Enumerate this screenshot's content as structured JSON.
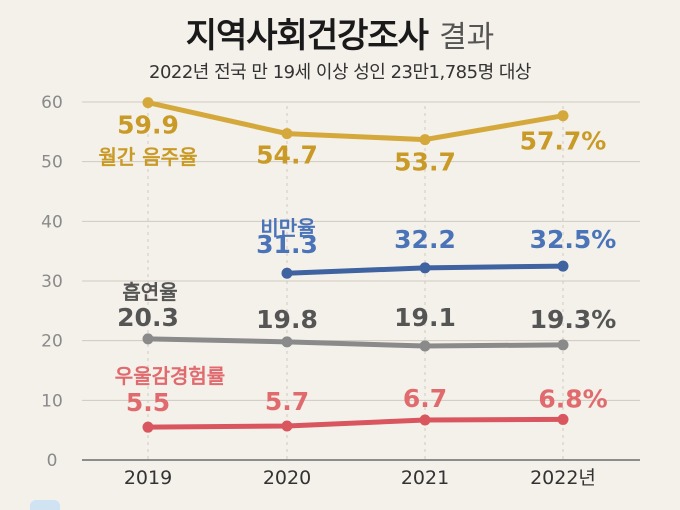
{
  "title": "지역사회건강조사",
  "title_suffix": "결과",
  "subtitle": "2022년 전국 만 19세 이상 성인 23만1,785명 대상",
  "chart_data": {
    "type": "line",
    "x": [
      "2019",
      "2020",
      "2021",
      "2022"
    ],
    "x_tick_labels": [
      "2019",
      "2020",
      "2021",
      "2022년"
    ],
    "ylim": [
      0,
      60
    ],
    "y_ticks": [
      0,
      10,
      20,
      30,
      40,
      50,
      60
    ],
    "grid": true,
    "series": [
      {
        "name": "월간 음주율",
        "color": "#d4a83a",
        "text_color": "#c99a26",
        "values": [
          59.9,
          54.7,
          53.7,
          57.7
        ],
        "labels": [
          "59.9",
          "54.7",
          "53.7",
          "57.7%"
        ]
      },
      {
        "name": "비만율",
        "color": "#3f62a0",
        "text_color": "#4a73b8",
        "values": [
          null,
          31.3,
          32.2,
          32.5
        ],
        "labels": [
          "",
          "31.3",
          "32.2",
          "32.5%"
        ]
      },
      {
        "name": "흡연율",
        "color": "#8a8a8a",
        "text_color": "#555555",
        "values": [
          20.3,
          19.8,
          19.1,
          19.3
        ],
        "labels": [
          "20.3",
          "19.8",
          "19.1",
          "19.3%"
        ]
      },
      {
        "name": "우울감경험률",
        "color": "#d9565f",
        "text_color": "#e06a6e",
        "values": [
          5.5,
          5.7,
          6.7,
          6.8
        ],
        "labels": [
          "5.5",
          "5.7",
          "6.7",
          "6.8%"
        ]
      }
    ]
  }
}
